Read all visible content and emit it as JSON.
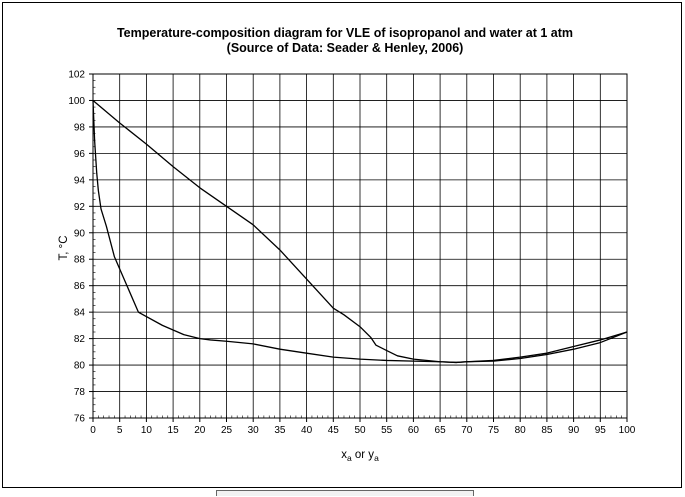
{
  "chart_data": {
    "type": "line",
    "title": "Temperature-composition diagram for VLE of isopropanol and water  at 1 atm",
    "subtitle": "(Source of Data: Seader & Henley, 2006)",
    "xlabel_main": "x",
    "xlabel_sub1": "a",
    "xlabel_mid": " or y",
    "xlabel_sub2": "a",
    "ylabel": "T, °C",
    "xlim": [
      0,
      100
    ],
    "ylim": [
      76,
      102
    ],
    "xticks": [
      0,
      5,
      10,
      15,
      20,
      25,
      30,
      35,
      40,
      45,
      50,
      55,
      60,
      65,
      70,
      75,
      80,
      85,
      90,
      95,
      100
    ],
    "yticks": [
      76,
      78,
      80,
      82,
      84,
      86,
      88,
      90,
      92,
      94,
      96,
      98,
      100,
      102
    ],
    "grid": true,
    "series": [
      {
        "values_x": [
          0,
          0.3,
          0.7,
          1.0,
          1.5,
          2.5,
          4.0,
          8.5,
          13,
          17,
          20,
          22,
          25,
          30,
          35,
          40,
          45,
          50,
          55,
          60,
          65,
          68,
          70,
          75,
          80,
          85,
          90,
          95,
          100
        ],
        "values_y": [
          100,
          97.0,
          94.5,
          93.2,
          91.8,
          90.5,
          88.2,
          84.0,
          83.0,
          82.3,
          82.0,
          81.9,
          81.8,
          81.6,
          81.2,
          80.9,
          80.6,
          80.45,
          80.35,
          80.3,
          80.25,
          80.2,
          80.25,
          80.3,
          80.5,
          80.8,
          81.2,
          81.7,
          82.5
        ]
      },
      {
        "values_x": [
          0,
          5,
          10,
          15,
          20,
          25,
          30,
          35,
          40,
          45,
          47,
          50,
          52,
          53,
          55,
          57,
          60,
          65,
          68,
          70,
          75,
          80,
          85,
          90,
          95,
          100
        ],
        "values_y": [
          100,
          98.3,
          96.7,
          95.0,
          93.4,
          92.0,
          90.6,
          88.7,
          86.5,
          84.3,
          83.8,
          82.9,
          82.1,
          81.5,
          81.1,
          80.7,
          80.45,
          80.25,
          80.2,
          80.25,
          80.35,
          80.6,
          80.9,
          81.4,
          81.9,
          82.5
        ]
      }
    ]
  }
}
